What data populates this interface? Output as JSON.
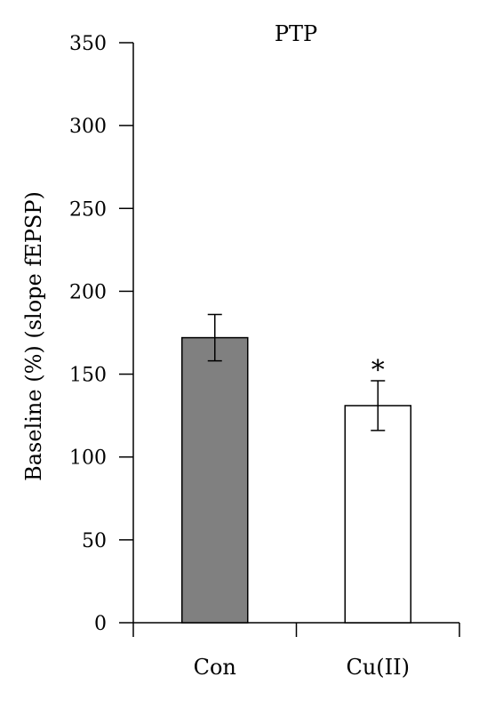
{
  "chart_data": {
    "type": "bar",
    "title": "PTP",
    "xlabel": "",
    "ylabel": "Baseline (%) (slope fEPSP)",
    "ylim": [
      0,
      350
    ],
    "yticks": [
      0,
      50,
      100,
      150,
      200,
      250,
      300,
      350
    ],
    "grid": false,
    "categories": [
      "Con",
      "Cu(II)"
    ],
    "values": [
      172,
      131
    ],
    "errors": [
      14,
      15
    ],
    "bar_colors": [
      "#808080",
      "#ffffff"
    ],
    "annotations": [
      {
        "category": "Cu(II)",
        "text": "*"
      }
    ]
  }
}
